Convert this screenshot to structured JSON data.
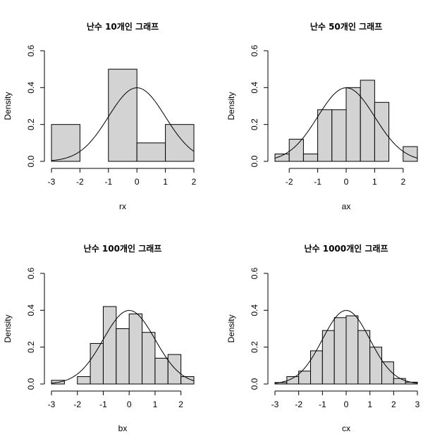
{
  "chart_data": [
    {
      "type": "bar",
      "title": "난수 10개인 그래프",
      "xlabel": "rx",
      "ylabel": "Density",
      "xlim": [
        -3,
        2
      ],
      "ylim": [
        0,
        0.6
      ],
      "xticks": [
        "-3",
        "-2",
        "-1",
        "0",
        "1",
        "2"
      ],
      "yticks": [
        "0.0",
        "0.2",
        "0.4",
        "0.6"
      ],
      "bins": [
        {
          "x0": -3,
          "x1": -2,
          "density": 0.2
        },
        {
          "x0": -2,
          "x1": -1,
          "density": 0.0
        },
        {
          "x0": -1,
          "x1": 0,
          "density": 0.5
        },
        {
          "x0": 0,
          "x1": 1,
          "density": 0.1
        },
        {
          "x0": 1,
          "x1": 2,
          "density": 0.2
        }
      ],
      "overlay": "normal-density"
    },
    {
      "type": "bar",
      "title": "난수 50개인 그래프",
      "xlabel": "ax",
      "ylabel": "Density",
      "xlim": [
        -2.5,
        2.5
      ],
      "ylim": [
        0,
        0.6
      ],
      "xticks": [
        "-2",
        "-1",
        "0",
        "1",
        "2"
      ],
      "yticks": [
        "0.0",
        "0.2",
        "0.4",
        "0.6"
      ],
      "bins": [
        {
          "x0": -2.5,
          "x1": -2.0,
          "density": 0.04
        },
        {
          "x0": -2.0,
          "x1": -1.5,
          "density": 0.12
        },
        {
          "x0": -1.5,
          "x1": -1.0,
          "density": 0.04
        },
        {
          "x0": -1.0,
          "x1": -0.5,
          "density": 0.28
        },
        {
          "x0": -0.5,
          "x1": 0.0,
          "density": 0.28
        },
        {
          "x0": 0.0,
          "x1": 0.5,
          "density": 0.4
        },
        {
          "x0": 0.5,
          "x1": 1.0,
          "density": 0.44
        },
        {
          "x0": 1.0,
          "x1": 1.5,
          "density": 0.32
        },
        {
          "x0": 1.5,
          "x1": 2.0,
          "density": 0.0
        },
        {
          "x0": 2.0,
          "x1": 2.5,
          "density": 0.08
        }
      ],
      "overlay": "normal-density"
    },
    {
      "type": "bar",
      "title": "난수 100개인 그래프",
      "xlabel": "bx",
      "ylabel": "Density",
      "xlim": [
        -3,
        2.5
      ],
      "ylim": [
        0,
        0.6
      ],
      "xticks": [
        "-3",
        "-2",
        "-1",
        "0",
        "1",
        "2"
      ],
      "yticks": [
        "0.0",
        "0.2",
        "0.4",
        "0.6"
      ],
      "bins": [
        {
          "x0": -3.0,
          "x1": -2.5,
          "density": 0.02
        },
        {
          "x0": -2.5,
          "x1": -2.0,
          "density": 0.0
        },
        {
          "x0": -2.0,
          "x1": -1.5,
          "density": 0.04
        },
        {
          "x0": -1.5,
          "x1": -1.0,
          "density": 0.22
        },
        {
          "x0": -1.0,
          "x1": -0.5,
          "density": 0.42
        },
        {
          "x0": -0.5,
          "x1": 0.0,
          "density": 0.3
        },
        {
          "x0": 0.0,
          "x1": 0.5,
          "density": 0.38
        },
        {
          "x0": 0.5,
          "x1": 1.0,
          "density": 0.28
        },
        {
          "x0": 1.0,
          "x1": 1.5,
          "density": 0.14
        },
        {
          "x0": 1.5,
          "x1": 2.0,
          "density": 0.16
        },
        {
          "x0": 2.0,
          "x1": 2.5,
          "density": 0.04
        }
      ],
      "overlay": "normal-density"
    },
    {
      "type": "bar",
      "title": "난수 1000개인 그래프",
      "xlabel": "cx",
      "ylabel": "Density",
      "xlim": [
        -3,
        3
      ],
      "ylim": [
        0,
        0.6
      ],
      "xticks": [
        "-3",
        "-2",
        "-1",
        "0",
        "1",
        "2",
        "3"
      ],
      "yticks": [
        "0.0",
        "0.2",
        "0.4",
        "0.6"
      ],
      "bins": [
        {
          "x0": -3.0,
          "x1": -2.5,
          "density": 0.008
        },
        {
          "x0": -2.5,
          "x1": -2.0,
          "density": 0.04
        },
        {
          "x0": -2.0,
          "x1": -1.5,
          "density": 0.07
        },
        {
          "x0": -1.5,
          "x1": -1.0,
          "density": 0.18
        },
        {
          "x0": -1.0,
          "x1": -0.5,
          "density": 0.29
        },
        {
          "x0": -0.5,
          "x1": 0.0,
          "density": 0.36
        },
        {
          "x0": 0.0,
          "x1": 0.5,
          "density": 0.37
        },
        {
          "x0": 0.5,
          "x1": 1.0,
          "density": 0.29
        },
        {
          "x0": 1.0,
          "x1": 1.5,
          "density": 0.2
        },
        {
          "x0": 1.5,
          "x1": 2.0,
          "density": 0.12
        },
        {
          "x0": 2.0,
          "x1": 2.5,
          "density": 0.03
        },
        {
          "x0": 2.5,
          "x1": 3.0,
          "density": 0.01
        }
      ],
      "overlay": "normal-density"
    }
  ]
}
